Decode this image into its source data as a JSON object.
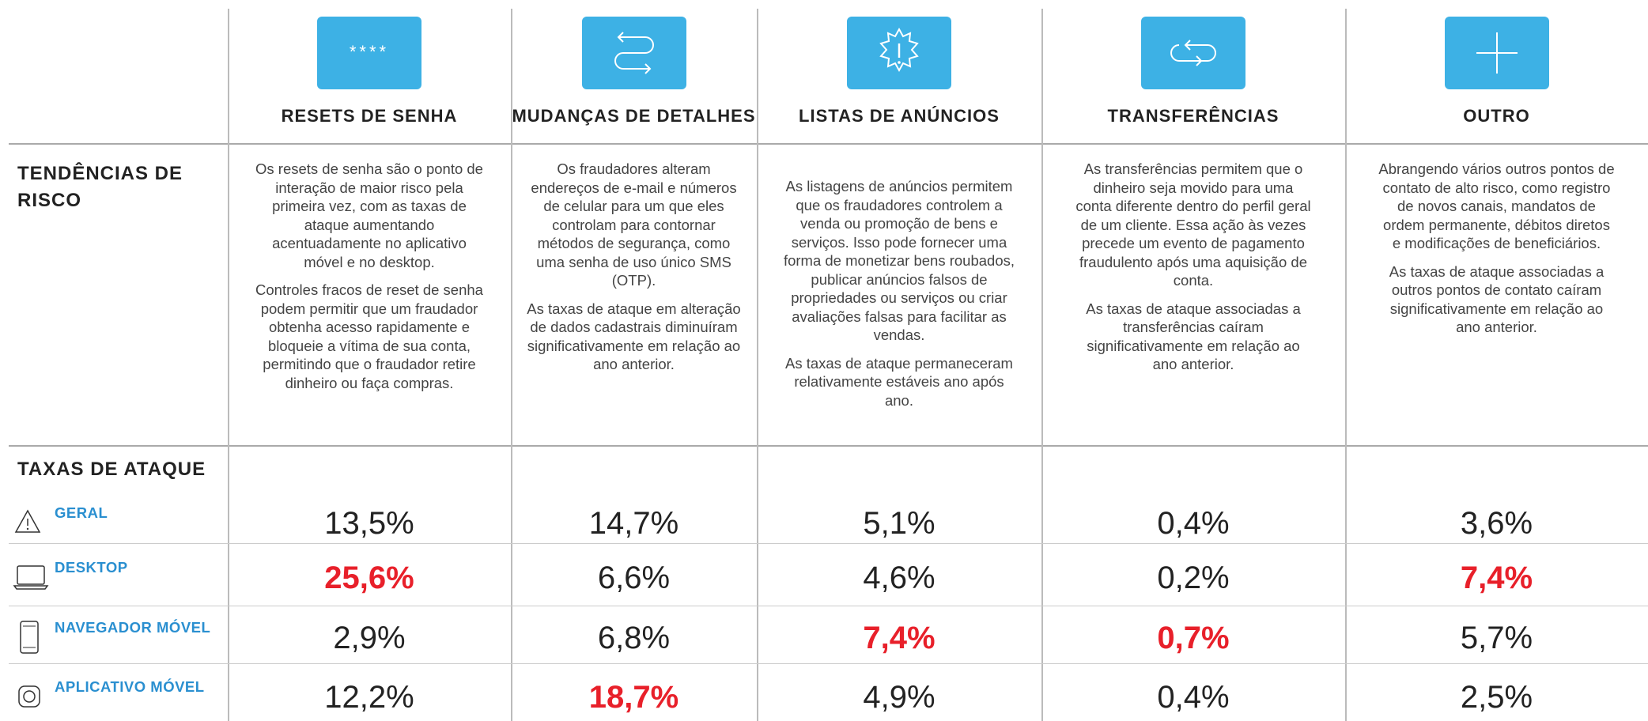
{
  "columns": [
    {
      "title": "RESETS DE SENHA",
      "icon_label": "****"
    },
    {
      "title": "MUDANÇAS DE DETALHES"
    },
    {
      "title": "LISTAS DE ANÚNCIOS"
    },
    {
      "title": "TRANSFERÊNCIAS"
    },
    {
      "title": "OUTRO"
    }
  ],
  "risk_trends": {
    "label": "TENDÊNCIAS DE RISCO",
    "cells": [
      [
        "Os resets de senha são o ponto de interação de maior risco pela primeira vez, com as taxas de ataque aumentando acentuadamente no aplicativo móvel e no desktop.",
        "Controles fracos de reset de senha podem permitir que um fraudador obtenha acesso rapidamente e bloqueie a vítima de sua conta, permitindo que o fraudador retire dinheiro ou faça compras."
      ],
      [
        "Os fraudadores alteram endereços de e-mail e números de celular para um que eles controlam para contornar métodos de segurança, como uma senha de uso único SMS (OTP).",
        "As taxas de ataque em alteração de dados cadastrais diminuíram significativamente em relação ao ano anterior."
      ],
      [
        "As listagens de anúncios permitem que os fraudadores controlem a venda ou promoção de bens e serviços. Isso pode fornecer uma forma de monetizar bens roubados, publicar anúncios falsos de propriedades ou serviços ou criar avaliações falsas para facilitar as vendas.",
        "As taxas de ataque permaneceram relativamente estáveis ano após ano."
      ],
      [
        "As transferências permitem que o dinheiro seja movido para uma conta diferente dentro do perfil geral de um cliente. Essa ação às vezes precede um evento de pagamento fraudulento após uma aquisição de conta.",
        "As taxas de ataque associadas a transferências caíram significativamente em relação ao ano anterior."
      ],
      [
        "Abrangendo vários outros pontos de contato de alto risco, como registro de novos canais, mandatos de ordem permanente, débitos diretos e modificações de beneficiários.",
        "As taxas de ataque associadas a outros pontos de contato caíram significativamente em relação ao ano anterior."
      ]
    ]
  },
  "attack_rates": {
    "label": "TAXAS DE ATAQUE",
    "rows": [
      {
        "label": "GERAL",
        "values": [
          "13,5%",
          "14,7%",
          "5,1%",
          "0,4%",
          "3,6%"
        ],
        "highlight": [
          false,
          false,
          false,
          false,
          false
        ]
      },
      {
        "label": "DESKTOP",
        "values": [
          "25,6%",
          "6,6%",
          "4,6%",
          "0,2%",
          "7,4%"
        ],
        "highlight": [
          true,
          false,
          false,
          false,
          true
        ]
      },
      {
        "label": "NAVEGADOR MÓVEL",
        "values": [
          "2,9%",
          "6,8%",
          "7,4%",
          "0,7%",
          "5,7%"
        ],
        "highlight": [
          false,
          false,
          true,
          true,
          false
        ]
      },
      {
        "label": "APLICATIVO MÓVEL",
        "values": [
          "12,2%",
          "18,7%",
          "4,9%",
          "0,4%",
          "2,5%"
        ],
        "highlight": [
          false,
          true,
          false,
          false,
          false
        ]
      }
    ]
  }
}
